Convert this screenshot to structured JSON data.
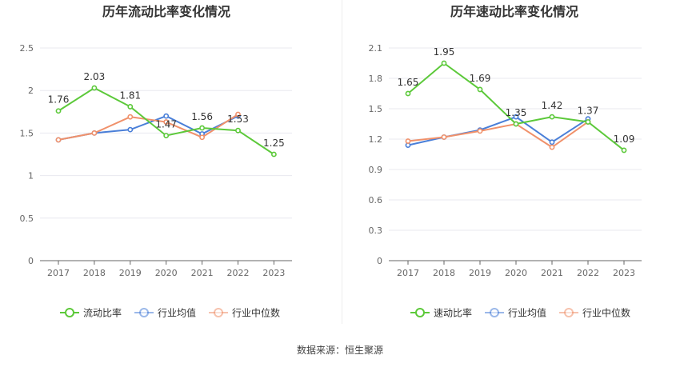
{
  "source_label": "数据来源：恒生聚源",
  "chart_data": [
    {
      "type": "line",
      "title": "历年流动比率变化情况",
      "categories": [
        "2017",
        "2018",
        "2019",
        "2020",
        "2021",
        "2022",
        "2023"
      ],
      "ylim": [
        0,
        2.5
      ],
      "yticks": [
        "0",
        "0.5",
        "1",
        "1.5",
        "2",
        "2.5"
      ],
      "grid": true,
      "legend_position": "bottom",
      "series": [
        {
          "name": "流动比率",
          "color": "#5cc93a",
          "labeled": true,
          "values": [
            1.76,
            2.03,
            1.81,
            1.47,
            1.56,
            1.53,
            1.25
          ],
          "labels": [
            "1.76",
            "2.03",
            "1.81",
            "1.47",
            "1.56",
            "1.53",
            "1.25"
          ]
        },
        {
          "name": "行业均值",
          "color": "#4a7fd8",
          "labeled": false,
          "values": [
            1.42,
            1.5,
            1.54,
            1.7,
            1.49,
            1.7,
            null
          ]
        },
        {
          "name": "行业中位数",
          "color": "#f0916b",
          "labeled": false,
          "values": [
            1.42,
            1.5,
            1.69,
            1.63,
            1.45,
            1.72,
            null
          ]
        }
      ]
    },
    {
      "type": "line",
      "title": "历年速动比率变化情况",
      "categories": [
        "2017",
        "2018",
        "2019",
        "2020",
        "2021",
        "2022",
        "2023"
      ],
      "ylim": [
        0,
        2.1
      ],
      "yticks": [
        "0",
        "0.3",
        "0.6",
        "0.9",
        "1.2",
        "1.5",
        "1.8",
        "2.1"
      ],
      "grid": true,
      "legend_position": "bottom",
      "series": [
        {
          "name": "速动比率",
          "color": "#5cc93a",
          "labeled": true,
          "values": [
            1.65,
            1.95,
            1.69,
            1.35,
            1.42,
            1.37,
            1.09
          ],
          "labels": [
            "1.65",
            "1.95",
            "1.69",
            "1.35",
            "1.42",
            "1.37",
            "1.09"
          ]
        },
        {
          "name": "行业均值",
          "color": "#4a7fd8",
          "labeled": false,
          "values": [
            1.14,
            1.22,
            1.29,
            1.42,
            1.17,
            1.4,
            null
          ]
        },
        {
          "name": "行业中位数",
          "color": "#f0916b",
          "labeled": false,
          "values": [
            1.18,
            1.22,
            1.28,
            1.35,
            1.12,
            1.37,
            null
          ]
        }
      ]
    }
  ]
}
